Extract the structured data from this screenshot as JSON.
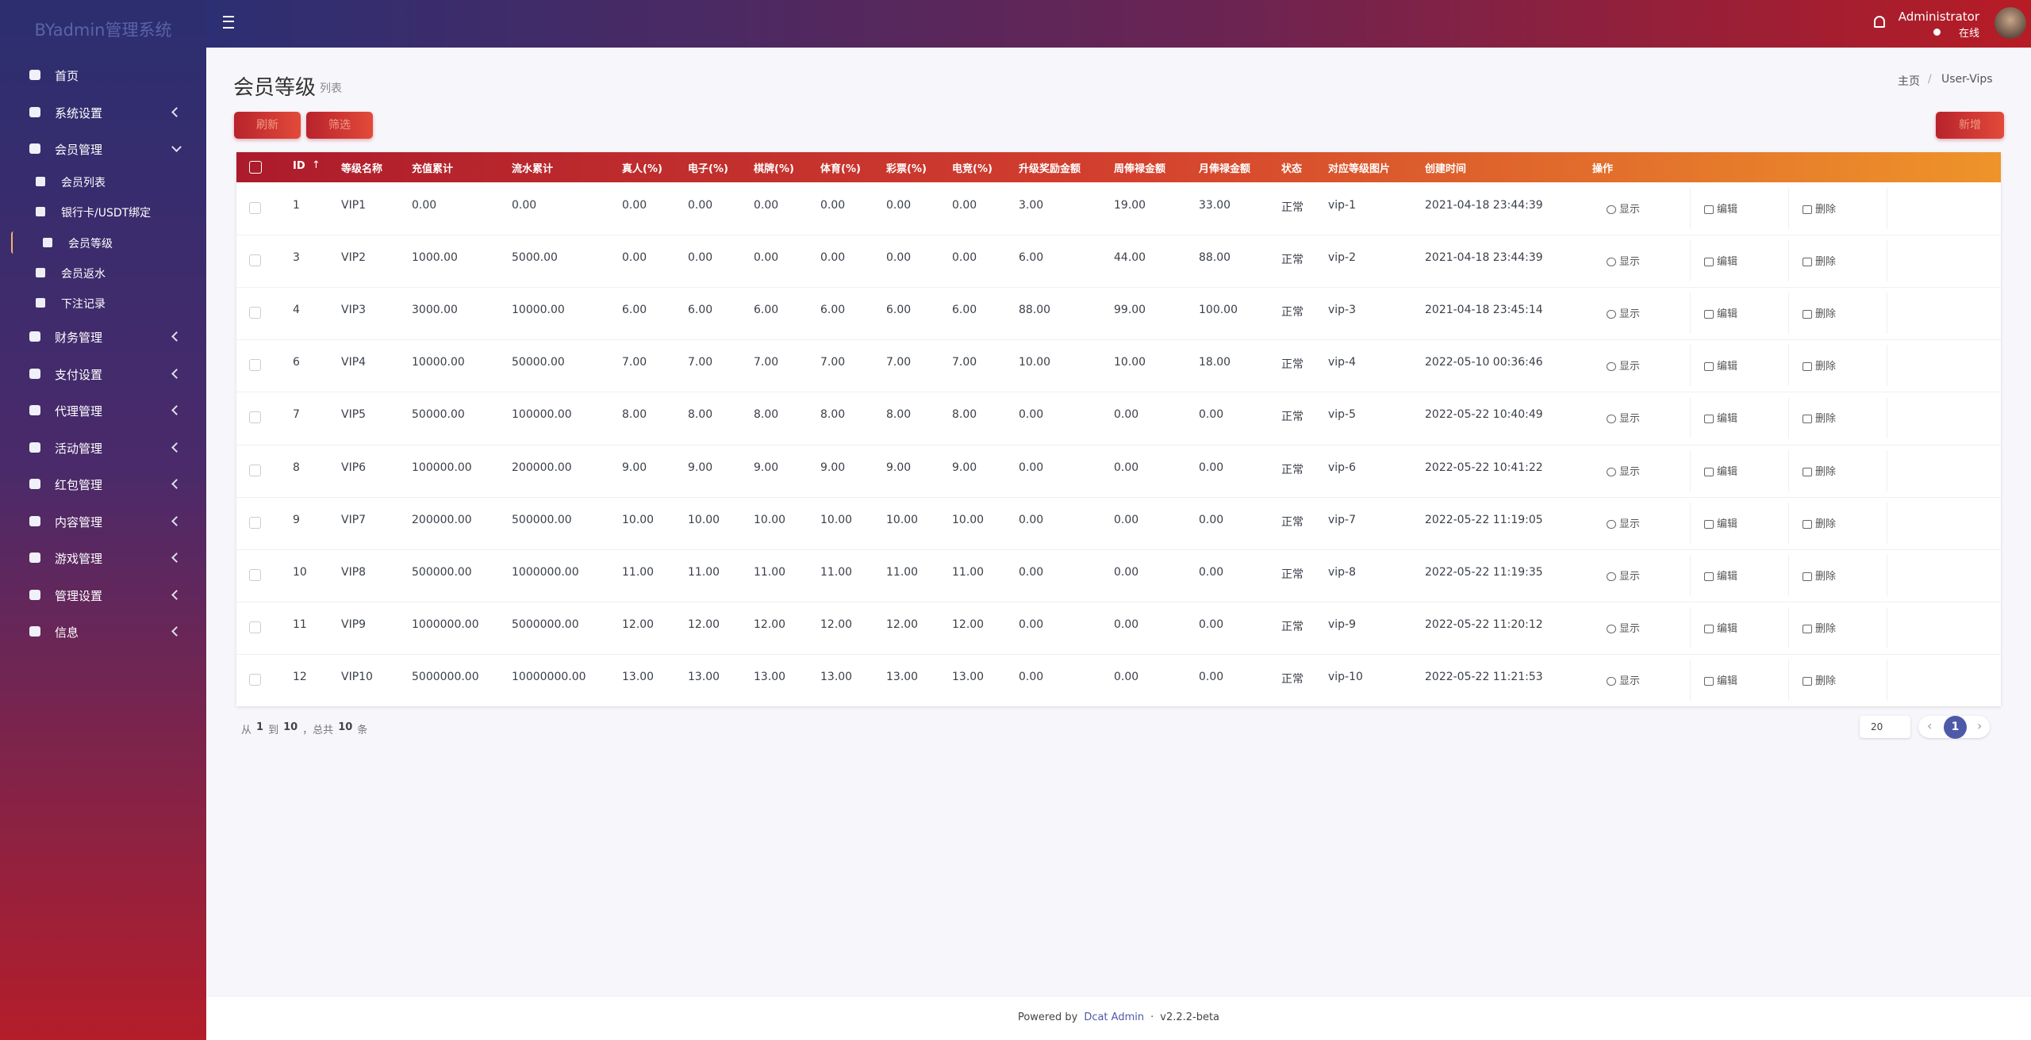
{
  "sidebar": {
    "brand": "BYadmin管理系统",
    "menu": [
      {
        "label": "首页"
      },
      {
        "label": "系统设置"
      },
      {
        "label": "会员管理",
        "expanded": true,
        "children": [
          {
            "label": "会员列表"
          },
          {
            "label": "银行卡/USDT绑定"
          },
          {
            "label": "会员等级",
            "active": true
          },
          {
            "label": "会员返水"
          },
          {
            "label": "下注记录"
          }
        ]
      },
      {
        "label": "财务管理"
      },
      {
        "label": "支付设置"
      },
      {
        "label": "代理管理"
      },
      {
        "label": "活动管理"
      },
      {
        "label": "红包管理"
      },
      {
        "label": "内容管理"
      },
      {
        "label": "游戏管理"
      },
      {
        "label": "管理设置"
      },
      {
        "label": "信息"
      }
    ]
  },
  "header": {
    "user": {
      "name": "Administrator",
      "status": "在线"
    }
  },
  "page": {
    "title": "会员等级",
    "subtitle": "列表",
    "breadcrumb": [
      "主页",
      "User-Vips"
    ],
    "toolbar": {
      "refresh": "刷新",
      "filter": "筛选",
      "create": "新增"
    }
  },
  "table": {
    "columns": [
      "ID",
      "等级名称",
      "充值累计",
      "流水累计",
      "真人(%)",
      "电子(%)",
      "棋牌(%)",
      "体育(%)",
      "彩票(%)",
      "电竞(%)",
      "升级奖励金额",
      "周俸禄金额",
      "月俸禄金额",
      "状态",
      "对应等级图片",
      "创建时间",
      "操作"
    ],
    "actions": [
      "显示",
      "编辑",
      "删除"
    ],
    "rows": [
      [
        "1",
        "VIP1",
        "0.00",
        "0.00",
        "0.00",
        "0.00",
        "0.00",
        "0.00",
        "0.00",
        "0.00",
        "3.00",
        "19.00",
        "33.00",
        "正常",
        "vip-1",
        "2021-04-18 23:44:39"
      ],
      [
        "3",
        "VIP2",
        "1000.00",
        "5000.00",
        "0.00",
        "0.00",
        "0.00",
        "0.00",
        "0.00",
        "0.00",
        "6.00",
        "44.00",
        "88.00",
        "正常",
        "vip-2",
        "2021-04-18 23:44:39"
      ],
      [
        "4",
        "VIP3",
        "3000.00",
        "10000.00",
        "6.00",
        "6.00",
        "6.00",
        "6.00",
        "6.00",
        "6.00",
        "88.00",
        "99.00",
        "100.00",
        "正常",
        "vip-3",
        "2021-04-18 23:45:14"
      ],
      [
        "6",
        "VIP4",
        "10000.00",
        "50000.00",
        "7.00",
        "7.00",
        "7.00",
        "7.00",
        "7.00",
        "7.00",
        "10.00",
        "10.00",
        "18.00",
        "正常",
        "vip-4",
        "2022-05-10 00:36:46"
      ],
      [
        "7",
        "VIP5",
        "50000.00",
        "100000.00",
        "8.00",
        "8.00",
        "8.00",
        "8.00",
        "8.00",
        "8.00",
        "0.00",
        "0.00",
        "0.00",
        "正常",
        "vip-5",
        "2022-05-22 10:40:49"
      ],
      [
        "8",
        "VIP6",
        "100000.00",
        "200000.00",
        "9.00",
        "9.00",
        "9.00",
        "9.00",
        "9.00",
        "9.00",
        "0.00",
        "0.00",
        "0.00",
        "正常",
        "vip-6",
        "2022-05-22 10:41:22"
      ],
      [
        "9",
        "VIP7",
        "200000.00",
        "500000.00",
        "10.00",
        "10.00",
        "10.00",
        "10.00",
        "10.00",
        "10.00",
        "0.00",
        "0.00",
        "0.00",
        "正常",
        "vip-7",
        "2022-05-22 11:19:05"
      ],
      [
        "10",
        "VIP8",
        "500000.00",
        "1000000.00",
        "11.00",
        "11.00",
        "11.00",
        "11.00",
        "11.00",
        "11.00",
        "0.00",
        "0.00",
        "0.00",
        "正常",
        "vip-8",
        "2022-05-22 11:19:35"
      ],
      [
        "11",
        "VIP9",
        "1000000.00",
        "5000000.00",
        "12.00",
        "12.00",
        "12.00",
        "12.00",
        "12.00",
        "12.00",
        "0.00",
        "0.00",
        "0.00",
        "正常",
        "vip-9",
        "2022-05-22 11:20:12"
      ],
      [
        "12",
        "VIP10",
        "5000000.00",
        "10000000.00",
        "13.00",
        "13.00",
        "13.00",
        "13.00",
        "13.00",
        "13.00",
        "0.00",
        "0.00",
        "0.00",
        "正常",
        "vip-10",
        "2022-05-22 11:21:53"
      ]
    ]
  },
  "pagination": {
    "prefix": "从",
    "from": "1",
    "to_word": "到",
    "to": "10",
    "total_word": "，总共",
    "total": "10",
    "suffix": "条",
    "per_page": "20",
    "current": "1"
  },
  "footer": {
    "powered": "Powered by",
    "link": "Dcat Admin",
    "dot": "·",
    "version": "v2.2.2-beta"
  }
}
